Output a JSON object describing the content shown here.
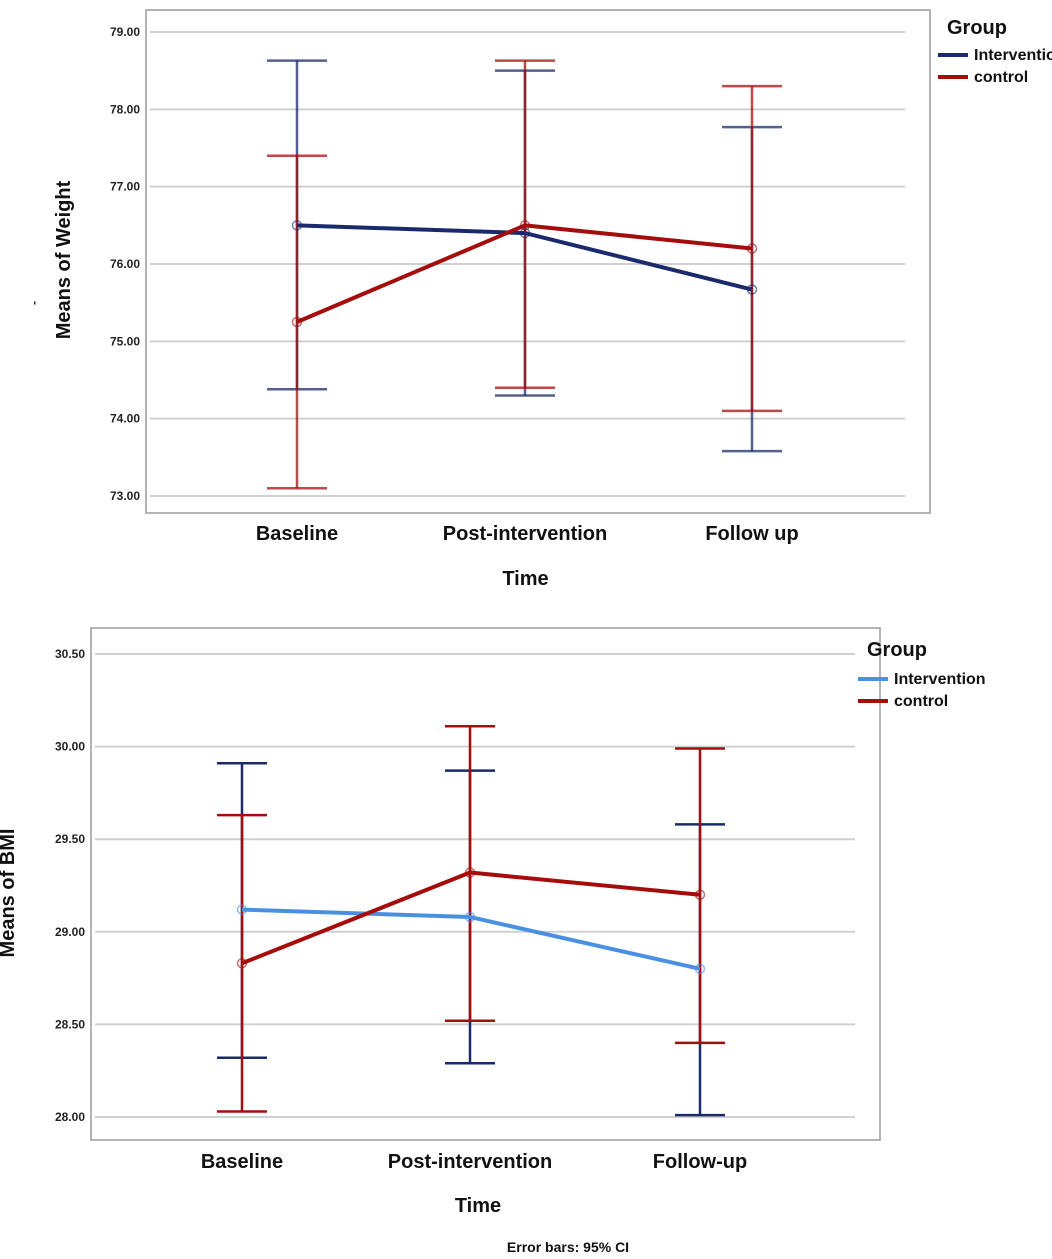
{
  "chart_data": [
    {
      "type": "line",
      "title": "",
      "xlabel": "Time",
      "ylabel": "Means of Weight",
      "ylabel_mark": "-",
      "ylim": [
        73.0,
        79.0
      ],
      "yticks": [
        73.0,
        74.0,
        75.0,
        76.0,
        77.0,
        78.0,
        79.0
      ],
      "ytick_labels": [
        "73.00",
        "74.00",
        "75.00",
        "76.00",
        "77.00",
        "78.00",
        "79.00"
      ],
      "categories": [
        "Baseline",
        "Post-intervention",
        "Follow up"
      ],
      "legend_title": "Group",
      "legend_position": "top-right",
      "error_bars": "95% CI",
      "series": [
        {
          "name": "Intervention",
          "color": "#1a2a6c",
          "values": [
            76.5,
            76.4,
            75.67
          ],
          "ci_low": [
            74.38,
            74.3,
            73.58
          ],
          "ci_high": [
            78.63,
            78.5,
            77.77
          ]
        },
        {
          "name": "control",
          "color": "#a50d0d",
          "values": [
            75.25,
            76.5,
            76.2
          ],
          "ci_low": [
            73.1,
            74.4,
            74.1
          ],
          "ci_high": [
            77.4,
            78.63,
            78.3
          ]
        }
      ]
    },
    {
      "type": "line",
      "title": "",
      "xlabel": "Time",
      "ylabel": "Means of BMI",
      "ylim": [
        28.0,
        30.5
      ],
      "yticks": [
        28.0,
        28.5,
        29.0,
        29.5,
        30.0,
        30.5
      ],
      "ytick_labels": [
        "28.00",
        "28.50",
        "29.00",
        "29.50",
        "30.00",
        "30.50"
      ],
      "categories": [
        "Baseline",
        "Post-intervention",
        "Follow-up"
      ],
      "legend_title": "Group",
      "legend_position": "top-right",
      "error_bars": "95% CI",
      "series": [
        {
          "name": "Intervention",
          "color": "#4a90e2",
          "bar_color": "#1a2a6c",
          "values": [
            29.12,
            29.08,
            28.8
          ],
          "ci_low": [
            28.32,
            28.29,
            28.01
          ],
          "ci_high": [
            29.91,
            29.87,
            29.58
          ]
        },
        {
          "name": "control",
          "color": "#a50d0d",
          "values": [
            28.83,
            29.32,
            29.2
          ],
          "ci_low": [
            28.03,
            28.52,
            28.4
          ],
          "ci_high": [
            29.63,
            30.11,
            29.99
          ]
        }
      ]
    }
  ],
  "footer": "Error bars: 95% CI"
}
